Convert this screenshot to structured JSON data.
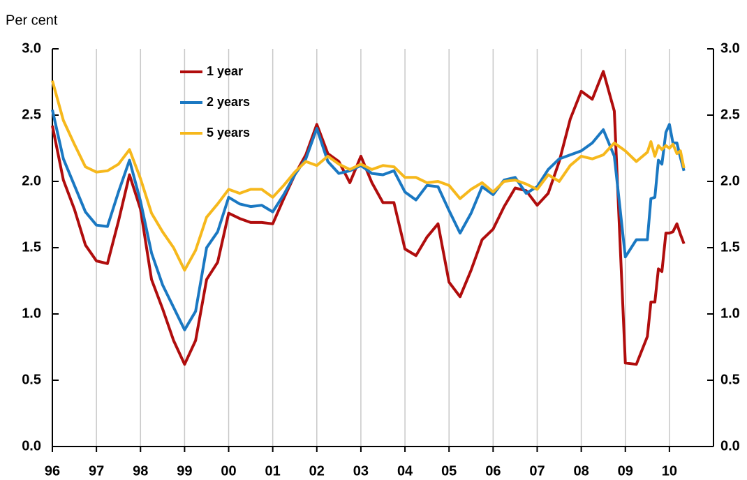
{
  "chart_data": {
    "type": "line",
    "y_label": "Per cent",
    "x": [
      1996.0,
      1996.25,
      1996.5,
      1996.75,
      1997.0,
      1997.25,
      1997.5,
      1997.75,
      1998.0,
      1998.25,
      1998.5,
      1998.75,
      1999.0,
      1999.25,
      1999.5,
      1999.75,
      2000.0,
      2000.25,
      2000.5,
      2000.75,
      2001.0,
      2001.25,
      2001.5,
      2001.75,
      2002.0,
      2002.25,
      2002.5,
      2002.75,
      2003.0,
      2003.25,
      2003.5,
      2003.75,
      2004.0,
      2004.25,
      2004.5,
      2004.75,
      2005.0,
      2005.25,
      2005.5,
      2005.75,
      2006.0,
      2006.25,
      2006.5,
      2006.75,
      2007.0,
      2007.25,
      2007.5,
      2007.75,
      2008.0,
      2008.25,
      2008.5,
      2008.75,
      2009.0,
      2009.25,
      2009.5,
      2009.58,
      2009.67,
      2009.75,
      2009.83,
      2009.92,
      2010.0,
      2010.08,
      2010.17,
      2010.25,
      2010.33
    ],
    "series": [
      {
        "name": "1 year",
        "color": "#b00d0d",
        "values": [
          2.42,
          2.01,
          1.79,
          1.52,
          1.4,
          1.38,
          1.7,
          2.05,
          1.79,
          1.26,
          1.04,
          0.8,
          0.62,
          0.8,
          1.26,
          1.39,
          1.76,
          1.72,
          1.69,
          1.69,
          1.68,
          1.87,
          2.05,
          2.2,
          2.43,
          2.21,
          2.15,
          1.99,
          2.19,
          1.99,
          1.84,
          1.84,
          1.49,
          1.44,
          1.58,
          1.68,
          1.24,
          1.13,
          1.33,
          1.56,
          1.64,
          1.81,
          1.95,
          1.93,
          1.82,
          1.91,
          2.15,
          2.47,
          2.68,
          2.62,
          2.83,
          2.53,
          0.63,
          0.62,
          0.83,
          1.09,
          1.09,
          1.34,
          1.32,
          1.61,
          1.61,
          1.62,
          1.68,
          1.6,
          1.53
        ]
      },
      {
        "name": "2 years",
        "color": "#1a78c2",
        "values": [
          2.54,
          2.17,
          1.97,
          1.77,
          1.67,
          1.66,
          1.92,
          2.16,
          1.85,
          1.46,
          1.22,
          1.05,
          0.88,
          1.02,
          1.5,
          1.62,
          1.88,
          1.83,
          1.81,
          1.82,
          1.77,
          1.9,
          2.05,
          2.17,
          2.4,
          2.15,
          2.06,
          2.08,
          2.12,
          2.06,
          2.05,
          2.08,
          1.92,
          1.86,
          1.97,
          1.96,
          1.78,
          1.61,
          1.76,
          1.96,
          1.9,
          2.01,
          2.03,
          1.91,
          1.96,
          2.09,
          2.17,
          2.2,
          2.23,
          2.29,
          2.39,
          2.19,
          1.43,
          1.56,
          1.56,
          1.87,
          1.88,
          2.16,
          2.13,
          2.37,
          2.43,
          2.29,
          2.29,
          2.18,
          2.08
        ]
      },
      {
        "name": "5 years",
        "color": "#f6b81c",
        "values": [
          2.76,
          2.46,
          2.28,
          2.11,
          2.07,
          2.08,
          2.13,
          2.24,
          2.02,
          1.76,
          1.62,
          1.5,
          1.33,
          1.48,
          1.73,
          1.83,
          1.94,
          1.91,
          1.94,
          1.94,
          1.88,
          1.97,
          2.07,
          2.15,
          2.12,
          2.19,
          2.13,
          2.09,
          2.13,
          2.09,
          2.12,
          2.11,
          2.03,
          2.03,
          1.99,
          2.0,
          1.97,
          1.87,
          1.94,
          1.99,
          1.92,
          2.0,
          2.01,
          1.98,
          1.94,
          2.05,
          2.0,
          2.12,
          2.19,
          2.17,
          2.2,
          2.29,
          2.23,
          2.15,
          2.22,
          2.3,
          2.19,
          2.27,
          2.24,
          2.27,
          2.25,
          2.28,
          2.21,
          2.23,
          2.1
        ]
      }
    ],
    "xlim": [
      1996,
      2011
    ],
    "xticks": [
      {
        "value": 1996,
        "label": "96"
      },
      {
        "value": 1997,
        "label": "97"
      },
      {
        "value": 1998,
        "label": "98"
      },
      {
        "value": 1999,
        "label": "99"
      },
      {
        "value": 2000,
        "label": "00"
      },
      {
        "value": 2001,
        "label": "01"
      },
      {
        "value": 2002,
        "label": "02"
      },
      {
        "value": 2003,
        "label": "03"
      },
      {
        "value": 2004,
        "label": "04"
      },
      {
        "value": 2005,
        "label": "05"
      },
      {
        "value": 2006,
        "label": "06"
      },
      {
        "value": 2007,
        "label": "07"
      },
      {
        "value": 2008,
        "label": "08"
      },
      {
        "value": 2009,
        "label": "09"
      },
      {
        "value": 2010,
        "label": "10"
      }
    ],
    "ylim": [
      0,
      3
    ],
    "yticks": [
      {
        "value": 0,
        "label": "0.0"
      },
      {
        "value": 0.5,
        "label": "0.5"
      },
      {
        "value": 1,
        "label": "1.0"
      },
      {
        "value": 1.5,
        "label": "1.5"
      },
      {
        "value": 2,
        "label": "2.0"
      },
      {
        "value": 2.5,
        "label": "2.5"
      },
      {
        "value": 3,
        "label": "3.0"
      }
    ],
    "y2lim": [
      0,
      3
    ],
    "y2ticks": [
      {
        "value": 0,
        "label": "0.0"
      },
      {
        "value": 0.5,
        "label": "0.5"
      },
      {
        "value": 1,
        "label": "1.0"
      },
      {
        "value": 1.5,
        "label": "1.5"
      },
      {
        "value": 2,
        "label": "2.0"
      },
      {
        "value": 2.5,
        "label": "2.5"
      },
      {
        "value": 3,
        "label": "3.0"
      }
    ],
    "grid": true,
    "legend": "upper left"
  }
}
